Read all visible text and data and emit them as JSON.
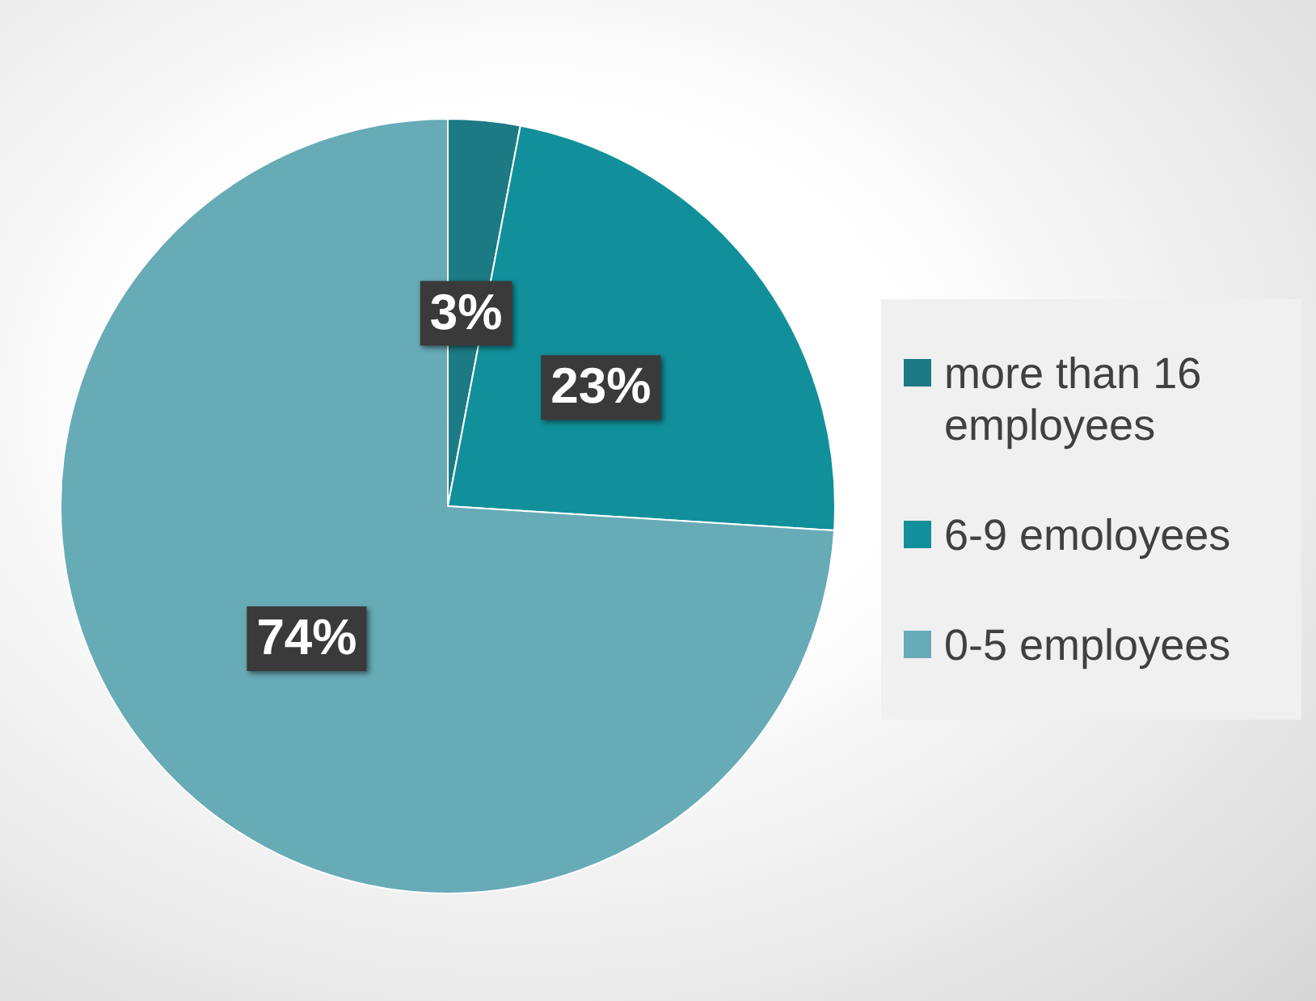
{
  "chart_data": {
    "type": "pie",
    "categories": [
      "more than 16 employees",
      "6-9 emoloyees",
      "0-5 employees"
    ],
    "values": [
      3,
      23,
      74
    ],
    "colors": [
      "#1b7a84",
      "#11909b",
      "#67abb7"
    ],
    "value_labels": [
      "3%",
      "23%",
      "74%"
    ],
    "legend": "right"
  }
}
